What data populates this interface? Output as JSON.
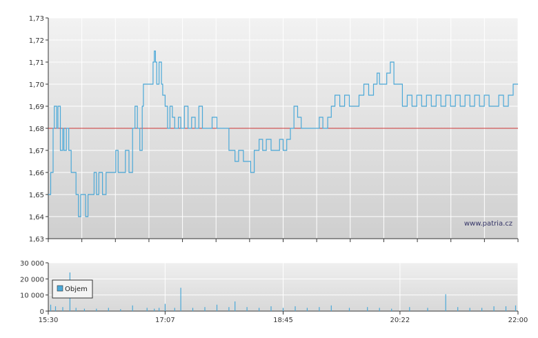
{
  "watermark": "www.patria.cz",
  "colors": {
    "price_line": "#4aa8d8",
    "reference_line": "#cc3333",
    "volume_bar": "#4aa8d8",
    "grid": "#ffffff"
  },
  "chart_data": [
    {
      "type": "line",
      "name": "price",
      "x_unit": "time of day",
      "xlim": [
        "15:30",
        "22:00"
      ],
      "ylim": [
        1.63,
        1.73
      ],
      "y_ticks": [
        "1,63",
        "1,64",
        "1,65",
        "1,66",
        "1,67",
        "1,68",
        "1,69",
        "1,70",
        "1,71",
        "1,72",
        "1,73"
      ],
      "reference_value": 1.68,
      "grid": true,
      "points": [
        [
          "15:30",
          1.65
        ],
        [
          "15:32",
          1.66
        ],
        [
          "15:34",
          1.68
        ],
        [
          "15:35",
          1.69
        ],
        [
          "15:37",
          1.68
        ],
        [
          "15:38",
          1.69
        ],
        [
          "15:40",
          1.67
        ],
        [
          "15:42",
          1.68
        ],
        [
          "15:43",
          1.67
        ],
        [
          "15:45",
          1.68
        ],
        [
          "15:47",
          1.67
        ],
        [
          "15:49",
          1.66
        ],
        [
          "15:51",
          1.66
        ],
        [
          "15:53",
          1.65
        ],
        [
          "15:55",
          1.64
        ],
        [
          "15:57",
          1.65
        ],
        [
          "15:59",
          1.65
        ],
        [
          "16:01",
          1.64
        ],
        [
          "16:03",
          1.65
        ],
        [
          "16:05",
          1.65
        ],
        [
          "16:08",
          1.66
        ],
        [
          "16:10",
          1.65
        ],
        [
          "16:12",
          1.66
        ],
        [
          "16:15",
          1.65
        ],
        [
          "16:18",
          1.66
        ],
        [
          "16:20",
          1.66
        ],
        [
          "16:23",
          1.66
        ],
        [
          "16:26",
          1.67
        ],
        [
          "16:28",
          1.66
        ],
        [
          "16:31",
          1.66
        ],
        [
          "16:34",
          1.67
        ],
        [
          "16:37",
          1.66
        ],
        [
          "16:40",
          1.68
        ],
        [
          "16:42",
          1.69
        ],
        [
          "16:44",
          1.68
        ],
        [
          "16:46",
          1.67
        ],
        [
          "16:48",
          1.69
        ],
        [
          "16:49",
          1.7
        ],
        [
          "16:52",
          1.7
        ],
        [
          "16:55",
          1.7
        ],
        [
          "16:57",
          1.71
        ],
        [
          "16:58",
          1.715
        ],
        [
          "16:59",
          1.71
        ],
        [
          "17:00",
          1.7
        ],
        [
          "17:02",
          1.71
        ],
        [
          "17:04",
          1.7
        ],
        [
          "17:05",
          1.695
        ],
        [
          "17:07",
          1.69
        ],
        [
          "17:09",
          1.68
        ],
        [
          "17:11",
          1.69
        ],
        [
          "17:13",
          1.685
        ],
        [
          "17:15",
          1.68
        ],
        [
          "17:18",
          1.685
        ],
        [
          "17:20",
          1.68
        ],
        [
          "17:23",
          1.69
        ],
        [
          "17:26",
          1.68
        ],
        [
          "17:29",
          1.685
        ],
        [
          "17:32",
          1.68
        ],
        [
          "17:35",
          1.69
        ],
        [
          "17:38",
          1.68
        ],
        [
          "17:42",
          1.68
        ],
        [
          "17:46",
          1.685
        ],
        [
          "17:50",
          1.68
        ],
        [
          "17:54",
          1.68
        ],
        [
          "17:56",
          1.68
        ],
        [
          "17:58",
          1.68
        ],
        [
          "18:00",
          1.67
        ],
        [
          "18:03",
          1.67
        ],
        [
          "18:05",
          1.665
        ],
        [
          "18:08",
          1.67
        ],
        [
          "18:12",
          1.665
        ],
        [
          "18:15",
          1.665
        ],
        [
          "18:18",
          1.66
        ],
        [
          "18:21",
          1.67
        ],
        [
          "18:25",
          1.675
        ],
        [
          "18:28",
          1.67
        ],
        [
          "18:31",
          1.675
        ],
        [
          "18:35",
          1.67
        ],
        [
          "18:38",
          1.67
        ],
        [
          "18:42",
          1.675
        ],
        [
          "18:45",
          1.67
        ],
        [
          "18:48",
          1.675
        ],
        [
          "18:51",
          1.68
        ],
        [
          "18:54",
          1.69
        ],
        [
          "18:57",
          1.685
        ],
        [
          "19:00",
          1.68
        ],
        [
          "19:04",
          1.68
        ],
        [
          "19:07",
          1.68
        ],
        [
          "19:11",
          1.68
        ],
        [
          "19:15",
          1.685
        ],
        [
          "19:18",
          1.68
        ],
        [
          "19:22",
          1.685
        ],
        [
          "19:25",
          1.69
        ],
        [
          "19:28",
          1.695
        ],
        [
          "19:32",
          1.69
        ],
        [
          "19:36",
          1.695
        ],
        [
          "19:40",
          1.69
        ],
        [
          "19:44",
          1.69
        ],
        [
          "19:48",
          1.695
        ],
        [
          "19:52",
          1.7
        ],
        [
          "19:56",
          1.695
        ],
        [
          "20:00",
          1.7
        ],
        [
          "20:03",
          1.705
        ],
        [
          "20:05",
          1.7
        ],
        [
          "20:08",
          1.7
        ],
        [
          "20:11",
          1.705
        ],
        [
          "20:14",
          1.71
        ],
        [
          "20:17",
          1.7
        ],
        [
          "20:20",
          1.7
        ],
        [
          "20:24",
          1.69
        ],
        [
          "20:28",
          1.695
        ],
        [
          "20:32",
          1.69
        ],
        [
          "20:36",
          1.695
        ],
        [
          "20:40",
          1.69
        ],
        [
          "20:44",
          1.695
        ],
        [
          "20:48",
          1.69
        ],
        [
          "20:52",
          1.695
        ],
        [
          "20:56",
          1.69
        ],
        [
          "21:00",
          1.695
        ],
        [
          "21:04",
          1.69
        ],
        [
          "21:08",
          1.695
        ],
        [
          "21:12",
          1.69
        ],
        [
          "21:16",
          1.695
        ],
        [
          "21:20",
          1.69
        ],
        [
          "21:24",
          1.695
        ],
        [
          "21:28",
          1.69
        ],
        [
          "21:32",
          1.695
        ],
        [
          "21:36",
          1.69
        ],
        [
          "21:40",
          1.69
        ],
        [
          "21:44",
          1.695
        ],
        [
          "21:48",
          1.69
        ],
        [
          "21:52",
          1.695
        ],
        [
          "21:56",
          1.7
        ],
        [
          "22:00",
          1.7
        ]
      ]
    },
    {
      "type": "bar",
      "name": "volume",
      "xlim": [
        "15:30",
        "22:00"
      ],
      "ylim": [
        0,
        30000
      ],
      "y_ticks": [
        "0",
        "10 000",
        "20 000",
        "30 000"
      ],
      "x_ticks": [
        "15:30",
        "17:07",
        "18:45",
        "20:22",
        "22:00"
      ],
      "legend": "Objem",
      "legend_position": "left",
      "grid": true,
      "bars": [
        [
          "15:32",
          4000
        ],
        [
          "15:36",
          3000
        ],
        [
          "15:42",
          2500
        ],
        [
          "15:48",
          24000
        ],
        [
          "15:53",
          2000
        ],
        [
          "16:00",
          1500
        ],
        [
          "16:10",
          1500
        ],
        [
          "16:20",
          2000
        ],
        [
          "16:30",
          1200
        ],
        [
          "16:40",
          3500
        ],
        [
          "16:52",
          2000
        ],
        [
          "16:58",
          1500
        ],
        [
          "17:02",
          2000
        ],
        [
          "17:07",
          4500
        ],
        [
          "17:15",
          2000
        ],
        [
          "17:20",
          14500
        ],
        [
          "17:30",
          2000
        ],
        [
          "17:40",
          2500
        ],
        [
          "17:50",
          4000
        ],
        [
          "18:00",
          2500
        ],
        [
          "18:05",
          6000
        ],
        [
          "18:15",
          2500
        ],
        [
          "18:25",
          2000
        ],
        [
          "18:35",
          3000
        ],
        [
          "18:45",
          2000
        ],
        [
          "18:55",
          3000
        ],
        [
          "19:05",
          2000
        ],
        [
          "19:15",
          2500
        ],
        [
          "19:25",
          3500
        ],
        [
          "19:40",
          2000
        ],
        [
          "19:55",
          2500
        ],
        [
          "20:05",
          2000
        ],
        [
          "20:15",
          1500
        ],
        [
          "20:30",
          2500
        ],
        [
          "20:45",
          2000
        ],
        [
          "21:00",
          10500
        ],
        [
          "21:10",
          2500
        ],
        [
          "21:20",
          2000
        ],
        [
          "21:30",
          2000
        ],
        [
          "21:40",
          3000
        ],
        [
          "21:50",
          3000
        ],
        [
          "21:58",
          3500
        ]
      ]
    }
  ]
}
